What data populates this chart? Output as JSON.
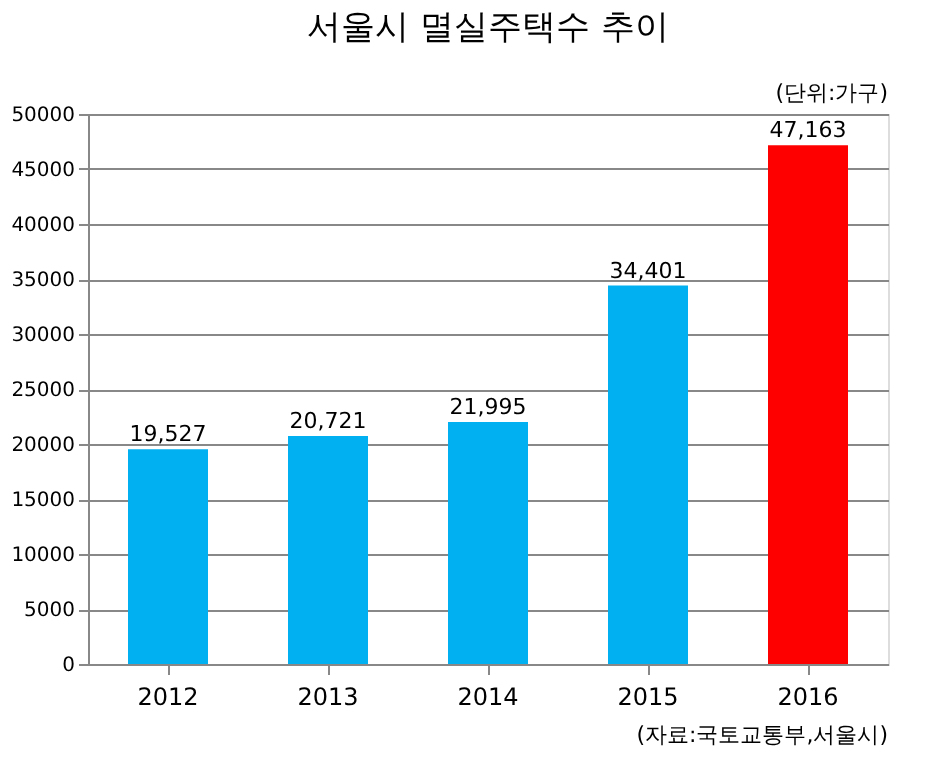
{
  "chart_data": {
    "type": "bar",
    "title": "서울시 멸실주택수 추이",
    "categories": [
      "2012",
      "2013",
      "2014",
      "2015",
      "2016"
    ],
    "values": [
      19527,
      20721,
      21995,
      34401,
      47163
    ],
    "value_labels": [
      "19,527",
      "20,721",
      "21,995",
      "34,401",
      "47,163"
    ],
    "colors": [
      "#00b0f0",
      "#00b0f0",
      "#00b0f0",
      "#00b0f0",
      "#ff0000"
    ],
    "ylim": [
      0,
      50000
    ],
    "yticks": [
      0,
      5000,
      10000,
      15000,
      20000,
      25000,
      30000,
      35000,
      40000,
      45000,
      50000
    ],
    "grid": "y",
    "annotations": [
      "(단위:가구)",
      "(자료:국토교통부,서울시)"
    ]
  }
}
